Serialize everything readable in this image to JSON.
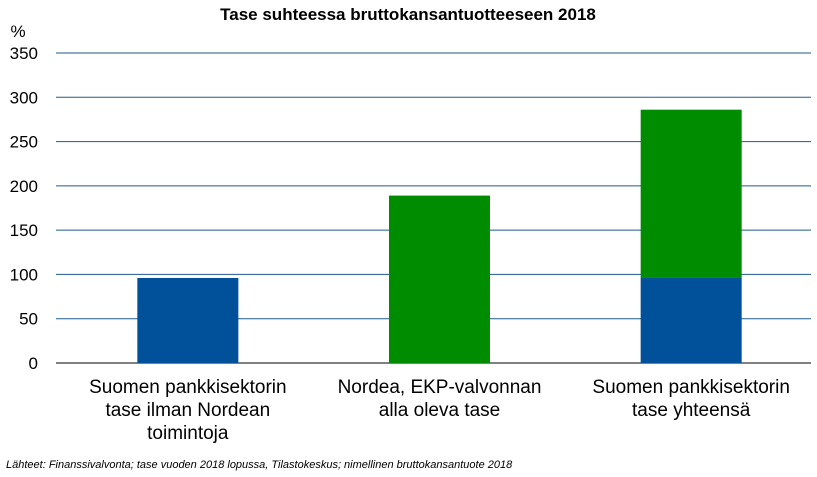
{
  "chart_data": {
    "type": "bar",
    "stacked": true,
    "title": "Tase suhteessa bruttokansantuotteeseen 2018",
    "y_unit": "%",
    "ylim": [
      0,
      350
    ],
    "y_ticks": [
      "0",
      "50",
      "100",
      "150",
      "200",
      "250",
      "300",
      "350"
    ],
    "grid": true,
    "categories": [
      [
        "Suomen pankkisektorin",
        "tase ilman Nordean",
        "toimintoja"
      ],
      [
        "Nordea, EKP-valvonnan",
        "alla oleva tase"
      ],
      [
        "Suomen pankkisektorin",
        "tase yhteensä"
      ]
    ],
    "series": [
      {
        "color": "#00509a",
        "values": [
          96,
          0,
          96
        ]
      },
      {
        "color": "#008c00",
        "values": [
          0,
          189,
          190
        ]
      }
    ],
    "colors": {
      "grid": "#1f5a8c",
      "axis": "#000000"
    }
  },
  "source_note": "Lähteet: Finanssivalvonta; tase vuoden 2018 lopussa, Tilastokeskus; nimellinen bruttokansantuote 2018"
}
